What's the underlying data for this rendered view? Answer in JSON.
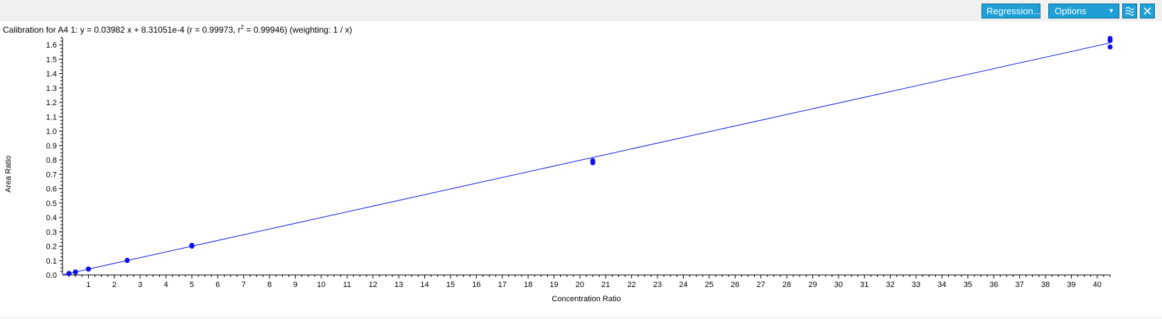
{
  "toolbar": {
    "regression_label": "Regression...",
    "options_label": "Options",
    "options_caret": "▼",
    "chart_style_icon": "chart-style-icon",
    "close_icon": "close-icon",
    "accent_color": "#1e9fd6"
  },
  "caption": {
    "prefix": "Calibration for A4 1: y = 0.03982 x + 8.31051e-4 (r = 0.99973, r",
    "superscript": "2",
    "suffix": " = 0.99946)  (weighting: 1 / x)"
  },
  "chart_data": {
    "type": "scatter",
    "title": "Calibration for A4 1",
    "xlabel": "Concentration Ratio",
    "ylabel": "Area Ratio",
    "xlim": [
      0,
      40.5
    ],
    "ylim": [
      0,
      1.65
    ],
    "x_ticks": [
      1,
      2,
      3,
      4,
      5,
      6,
      7,
      8,
      9,
      10,
      11,
      12,
      13,
      14,
      15,
      16,
      17,
      18,
      19,
      20,
      21,
      22,
      23,
      24,
      25,
      26,
      27,
      28,
      29,
      30,
      31,
      32,
      33,
      34,
      35,
      36,
      37,
      38,
      39,
      40
    ],
    "y_ticks": [
      0.0,
      0.1,
      0.2,
      0.3,
      0.4,
      0.5,
      0.6,
      0.7,
      0.8,
      0.9,
      1.0,
      1.1,
      1.2,
      1.3,
      1.4,
      1.5,
      1.6
    ],
    "point_color": "#1010ee",
    "line_color": "#1a1ae0",
    "fit": {
      "slope": 0.03982,
      "intercept": 0.000831051,
      "r": 0.99973,
      "r2": 0.99946,
      "weighting": "1 / x"
    },
    "points": [
      {
        "x": 0.25,
        "y": 0.01
      },
      {
        "x": 0.25,
        "y": 0.011
      },
      {
        "x": 0.5,
        "y": 0.019
      },
      {
        "x": 0.5,
        "y": 0.021
      },
      {
        "x": 1.0,
        "y": 0.04
      },
      {
        "x": 1.0,
        "y": 0.042
      },
      {
        "x": 2.5,
        "y": 0.1
      },
      {
        "x": 2.5,
        "y": 0.102
      },
      {
        "x": 5.0,
        "y": 0.2
      },
      {
        "x": 5.0,
        "y": 0.207
      },
      {
        "x": 20.5,
        "y": 0.78
      },
      {
        "x": 20.5,
        "y": 0.795
      },
      {
        "x": 40.5,
        "y": 1.585
      },
      {
        "x": 40.5,
        "y": 1.63
      },
      {
        "x": 40.5,
        "y": 1.645
      }
    ]
  }
}
